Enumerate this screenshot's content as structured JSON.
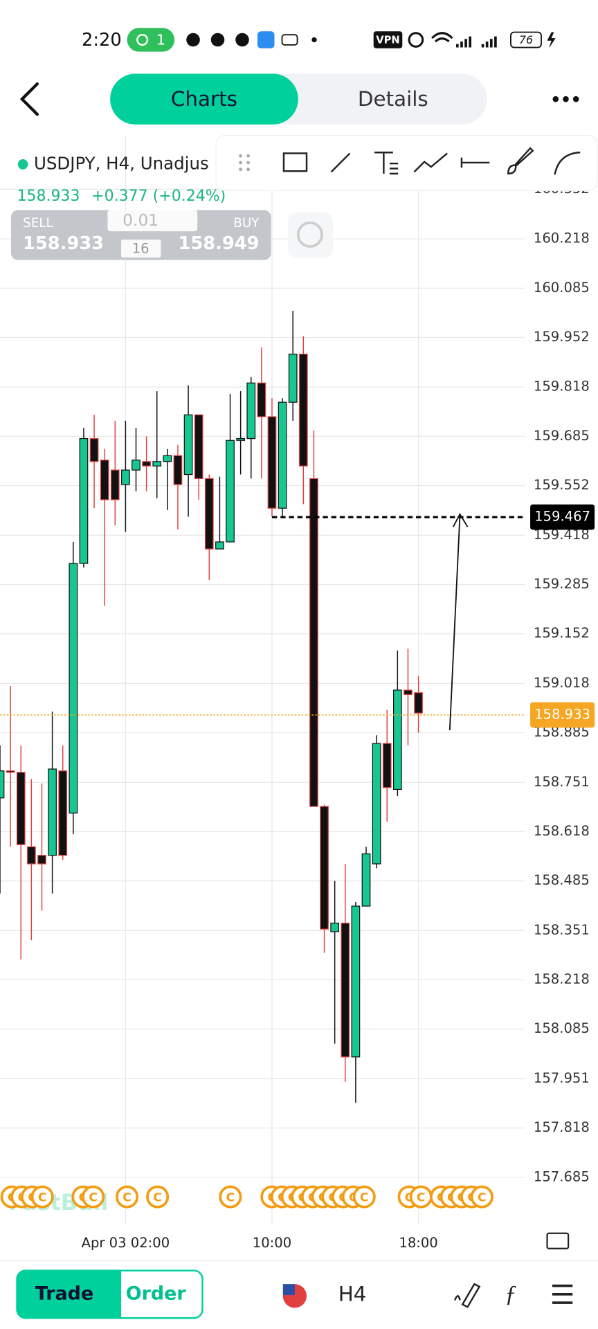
{
  "status_bar": {
    "time": "2:20",
    "hotspot_count": "1",
    "vpn": "VPN",
    "battery": "76"
  },
  "header": {
    "tabs": [
      "Charts",
      "Details"
    ]
  },
  "symbol": {
    "name": "USDJPY, H4, Unadjus",
    "price": "158.933",
    "change": "+0.377 (+0.24%)"
  },
  "trade_panel": {
    "sell_label": "SELL",
    "sell_price": "158.933",
    "lot": "0.01",
    "spread": "16",
    "buy_label": "BUY",
    "buy_price": "158.949"
  },
  "chart_data": {
    "type": "candlestick",
    "open": [
      158.709,
      158.782,
      158.778,
      158.577,
      158.554,
      158.554,
      158.782,
      158.668,
      159.342,
      159.679,
      159.621,
      159.594,
      159.555,
      159.594,
      159.617,
      159.605,
      159.617,
      159.633,
      159.582,
      159.743,
      159.571,
      159.381,
      159.4,
      159.674,
      159.679,
      159.829,
      159.738,
      159.491,
      159.777,
      159.907,
      159.571,
      158.686,
      158.348,
      158.371,
      158.01,
      158.417,
      158.531,
      158.856,
      158.732,
      159.0,
      158.993
    ],
    "high": [
      158.851,
      159.011,
      158.851,
      158.76,
      158.748,
      158.942,
      158.851,
      159.4,
      159.708,
      159.743,
      159.651,
      159.727,
      159.727,
      159.708,
      159.685,
      159.807,
      159.651,
      159.662,
      159.823,
      159.743,
      159.582,
      159.576,
      159.8,
      159.807,
      159.845,
      159.925,
      159.788,
      159.788,
      160.024,
      159.955,
      159.701,
      158.691,
      158.485,
      158.531,
      158.428,
      158.577,
      158.878,
      158.947,
      159.107,
      159.112,
      159.038
    ],
    "low": [
      158.451,
      158.577,
      158.273,
      158.325,
      158.405,
      158.451,
      158.542,
      158.611,
      159.331,
      159.491,
      159.228,
      159.445,
      159.427,
      159.537,
      159.537,
      159.518,
      159.486,
      159.434,
      159.468,
      159.514,
      159.297,
      159.381,
      159.4,
      159.582,
      159.571,
      159.571,
      159.468,
      159.468,
      159.727,
      159.502,
      158.686,
      158.291,
      158.046,
      157.943,
      157.886,
      158.417,
      158.519,
      158.645,
      158.714,
      158.851,
      158.885
    ],
    "close": [
      158.782,
      158.778,
      158.583,
      158.531,
      158.531,
      158.787,
      158.554,
      159.342,
      159.679,
      159.617,
      159.514,
      159.514,
      159.594,
      159.621,
      159.605,
      159.617,
      159.633,
      159.555,
      159.743,
      159.571,
      159.381,
      159.4,
      159.674,
      159.679,
      159.829,
      159.738,
      159.491,
      159.777,
      159.907,
      159.605,
      158.686,
      158.355,
      158.371,
      158.01,
      158.417,
      158.558,
      158.856,
      158.737,
      159.0,
      158.988,
      158.938
    ],
    "up_color": "#17c690",
    "down_color": "#111111",
    "down_wick_color": "#e0413f",
    "xlim": [
      0,
      50.2
    ],
    "xticks": [
      {
        "value": 12,
        "label": "Apr 03 02:00"
      },
      {
        "value": 26,
        "label": "10:00"
      },
      {
        "value": 40,
        "label": "18:00"
      }
    ],
    "ylim": [
      157.559,
      160.497
    ],
    "yticks": [
      160.352,
      160.218,
      160.085,
      159.952,
      159.818,
      159.685,
      159.552,
      159.418,
      159.285,
      159.152,
      159.018,
      158.885,
      158.751,
      158.618,
      158.485,
      158.351,
      158.218,
      158.085,
      157.951,
      157.818,
      157.685
    ],
    "grid": true,
    "price_lines": [
      {
        "value": 159.467,
        "color": "#000000",
        "style": "dashed"
      },
      {
        "value": 158.933,
        "color": "#f5a623",
        "style": "dotted"
      }
    ],
    "event_marker": "C",
    "watermark": "FastBull"
  },
  "bottom_bar": {
    "trade": "Trade",
    "order": "Order",
    "timeframe": "H4"
  }
}
